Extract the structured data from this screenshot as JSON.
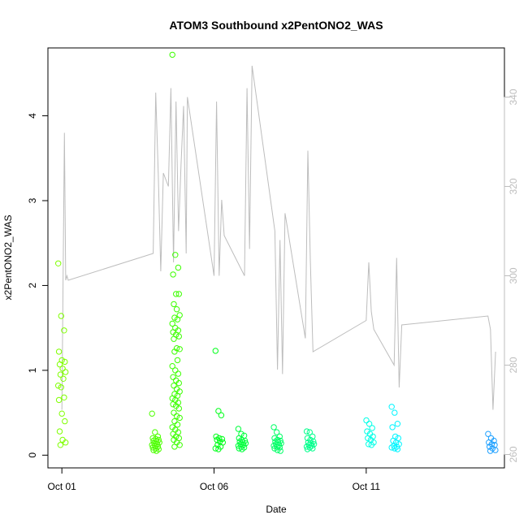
{
  "chart_data": {
    "type": "scatter",
    "title": "ATOM3 Southbound x2PentONO2_WAS",
    "xlabel": "Date",
    "ylabel": "x2PentONO2_WAS",
    "xlim": [
      "2016-09-30T13:00",
      "2016-10-15T13:00"
    ],
    "ylim": [
      -0.15,
      4.8
    ],
    "y2lim": [
      257,
      351
    ],
    "x_ticks": [
      {
        "value": "2016-10-01",
        "label": "Oct 01"
      },
      {
        "value": "2016-10-06",
        "label": "Oct 06"
      },
      {
        "value": "2016-10-11",
        "label": "Oct 11"
      }
    ],
    "y_ticks": [
      "0",
      "1",
      "2",
      "3",
      "4"
    ],
    "y2_ticks": [
      "260",
      "280",
      "300",
      "320",
      "340"
    ],
    "y2_color": "#bdbdbd",
    "grid": false,
    "legend": "none",
    "series": [
      {
        "kind": "points",
        "color_note": "color varies by time (green to blue)",
        "clusters": [
          {
            "x": "2016-10-01T00:00",
            "color": "#7fff00",
            "values": [
              2.26,
              1.64,
              1.47,
              1.22,
              1.12,
              1.1,
              1.07,
              1.02,
              0.98,
              0.95,
              0.9,
              0.82,
              0.8,
              0.68,
              0.65,
              0.49,
              0.4,
              0.28,
              0.18,
              0.15,
              0.12
            ]
          },
          {
            "x": "2016-10-04T02:00",
            "color": "#4cff00",
            "values": [
              0.49,
              0.27,
              0.22,
              0.2,
              0.19,
              0.18,
              0.17,
              0.16,
              0.15,
              0.14,
              0.13,
              0.12,
              0.11,
              0.1,
              0.09,
              0.08,
              0.07,
              0.06,
              0.05
            ]
          },
          {
            "x": "2016-10-04T18:00",
            "color": "#3cff00",
            "values": [
              4.72,
              2.36,
              2.21,
              2.13,
              1.9,
              1.9,
              1.78,
              1.72,
              1.65,
              1.62,
              1.6,
              1.55,
              1.5,
              1.47,
              1.45,
              1.42,
              1.4,
              1.37,
              1.26,
              1.25,
              1.22,
              1.12,
              1.05,
              1.0,
              0.96,
              0.92,
              0.88,
              0.85,
              0.82,
              0.78,
              0.75,
              0.72,
              0.7,
              0.67,
              0.65,
              0.62,
              0.6,
              0.58,
              0.55,
              0.5,
              0.46,
              0.44,
              0.4,
              0.36,
              0.33,
              0.3,
              0.27,
              0.25,
              0.22,
              0.2,
              0.18,
              0.15,
              0.12,
              0.1
            ]
          },
          {
            "x": "2016-10-06T04:00",
            "color": "#00ff1a",
            "values": [
              1.23,
              0.52,
              0.47,
              0.22,
              0.2,
              0.19,
              0.18,
              0.16,
              0.15,
              0.12,
              0.1,
              0.08,
              0.07
            ]
          },
          {
            "x": "2016-10-06T22:00",
            "color": "#00ff3c",
            "values": [
              0.31,
              0.25,
              0.23,
              0.2,
              0.18,
              0.17,
              0.16,
              0.15,
              0.14,
              0.13,
              0.12,
              0.11,
              0.1,
              0.09,
              0.08,
              0.07
            ]
          },
          {
            "x": "2016-10-08T02:00",
            "color": "#00ff66",
            "values": [
              0.33,
              0.27,
              0.22,
              0.2,
              0.18,
              0.17,
              0.16,
              0.15,
              0.14,
              0.13,
              0.12,
              0.11,
              0.1,
              0.09,
              0.08,
              0.06,
              0.05
            ]
          },
          {
            "x": "2016-10-09T04:00",
            "color": "#00ff8c",
            "values": [
              0.28,
              0.27,
              0.22,
              0.2,
              0.18,
              0.16,
              0.15,
              0.14,
              0.13,
              0.12,
              0.11,
              0.1,
              0.09,
              0.08,
              0.07
            ]
          },
          {
            "x": "2016-10-11T03:00",
            "color": "#00ffe6",
            "values": [
              0.41,
              0.37,
              0.32,
              0.28,
              0.25,
              0.22,
              0.2,
              0.18,
              0.15,
              0.13,
              0.12
            ]
          },
          {
            "x": "2016-10-11T23:00",
            "color": "#00f5ff",
            "values": [
              0.57,
              0.5,
              0.37,
              0.33,
              0.22,
              0.2,
              0.17,
              0.15,
              0.13,
              0.11,
              0.1,
              0.09,
              0.08,
              0.07
            ]
          },
          {
            "x": "2016-10-15T03:00",
            "color": "#1ea0ff",
            "values": [
              0.25,
              0.2,
              0.17,
              0.15,
              0.13,
              0.12,
              0.1,
              0.08,
              0.06,
              0.05
            ]
          }
        ]
      },
      {
        "kind": "line",
        "axis": "right",
        "color": "#bdbdbd",
        "x": [
          "2016-10-01T00:00",
          "2016-10-01T02:00",
          "2016-10-01T03:00",
          "2016-10-01T04:00",
          "2016-10-01T05:00",
          "2016-10-04T00:00",
          "2016-10-04T02:00",
          "2016-10-04T04:00",
          "2016-10-04T06:00",
          "2016-10-04T08:00",
          "2016-10-04T12:00",
          "2016-10-04T14:00",
          "2016-10-04T16:00",
          "2016-10-04T18:00",
          "2016-10-04T20:00",
          "2016-10-04T22:00",
          "2016-10-05T00:00",
          "2016-10-05T02:00",
          "2016-10-05T03:00",
          "2016-10-06T00:00",
          "2016-10-06T02:00",
          "2016-10-06T04:00",
          "2016-10-06T06:00",
          "2016-10-06T08:00",
          "2016-10-07T00:00",
          "2016-10-07T02:00",
          "2016-10-07T04:00",
          "2016-10-07T06:00",
          "2016-10-08T00:00",
          "2016-10-08T02:00",
          "2016-10-08T04:00",
          "2016-10-08T06:00",
          "2016-10-08T08:00",
          "2016-10-09T00:00",
          "2016-10-09T02:00",
          "2016-10-09T04:00",
          "2016-10-09T06:00",
          "2016-10-11T00:00",
          "2016-10-11T02:00",
          "2016-10-11T04:00",
          "2016-10-11T06:00",
          "2016-10-11T22:00",
          "2016-10-12T00:00",
          "2016-10-12T02:00",
          "2016-10-12T04:00",
          "2016-10-15T00:00",
          "2016-10-15T02:00",
          "2016-10-15T04:00",
          "2016-10-15T06:00"
        ],
        "y": [
          270,
          332,
          299,
          300,
          299,
          305,
          341,
          323,
          301,
          323,
          320,
          342,
          303,
          339,
          310,
          325,
          338,
          305,
          340,
          300,
          339,
          300,
          317,
          309,
          300,
          342,
          306,
          347,
          310,
          279,
          308,
          278,
          314,
          286,
          328,
          303,
          283,
          290,
          303,
          292,
          288,
          280,
          304,
          275,
          289,
          291,
          288,
          270,
          283
        ]
      }
    ]
  }
}
